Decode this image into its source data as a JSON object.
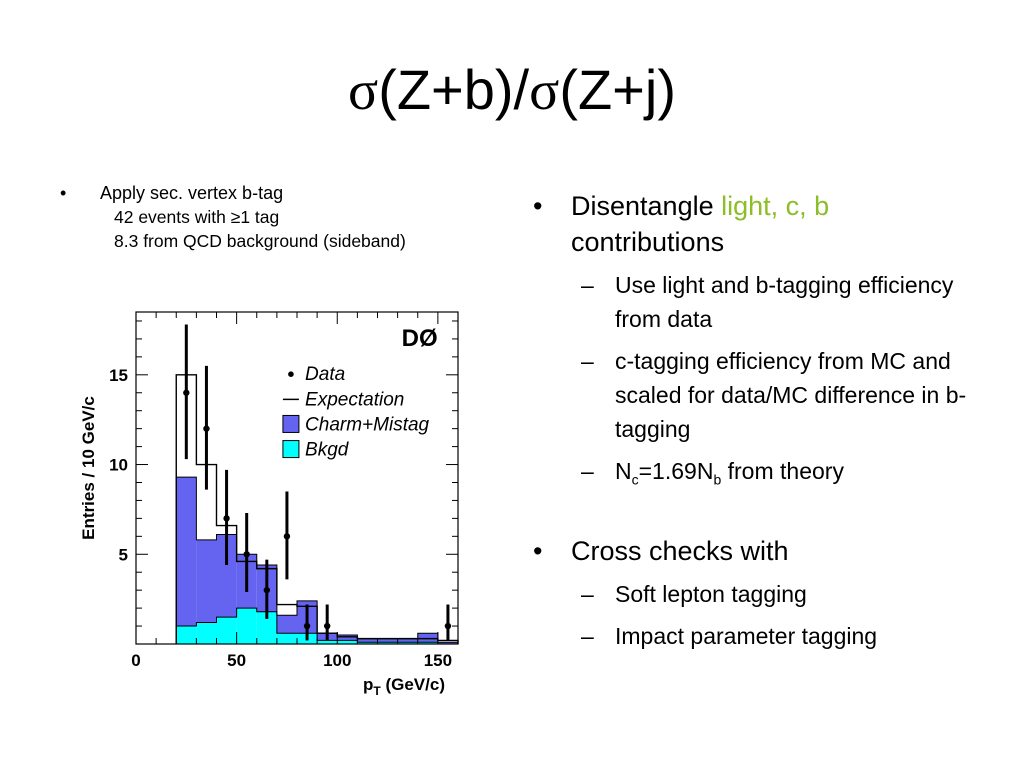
{
  "slide": {
    "title_sigma_1": "σ",
    "title_part_1": "(Z+b)/",
    "title_sigma_2": "σ",
    "title_part_2": "(Z+j)"
  },
  "left": {
    "bullet": "•",
    "heading": "Apply sec. vertex b-tag",
    "sub1": "42 events with ≥1 tag",
    "sub2": "8.3 from QCD background (sideband)"
  },
  "right": {
    "bullet": "•",
    "dash": "–",
    "b1_pre": "Disentangle ",
    "b1_green": "light, c, b",
    "b1_post": "contributions",
    "b1_s1": "Use light and b-tagging efficiency from data",
    "b1_s2": "c-tagging efficiency from MC and scaled for data/MC difference in b-tagging",
    "b1_s3_a": "N",
    "b1_s3_sub1": "c",
    "b1_s3_b": "=1.69N",
    "b1_s3_sub2": "b",
    "b1_s3_c": " from theory",
    "b2": "Cross checks with",
    "b2_s1": "Soft lepton tagging",
    "b2_s2": "Impact parameter tagging"
  },
  "colors": {
    "green_text": "#8cbe28",
    "charm": "#6464f0",
    "bkgd": "#00ffff",
    "data": "#000000"
  },
  "chart_data": {
    "type": "bar",
    "experiment_label": "DØ",
    "xlabel_main": "p",
    "xlabel_sub": "T",
    "xlabel_rest": " (GeV/c)",
    "ylabel": "Entries / 10 GeV/c",
    "xlim": [
      0,
      160
    ],
    "ylim": [
      0,
      18.5
    ],
    "x_ticks": [
      0,
      50,
      100,
      150
    ],
    "y_ticks": [
      5,
      10,
      15
    ],
    "legend": [
      {
        "name": "Data",
        "symbol": "marker"
      },
      {
        "name": "Expectation",
        "symbol": "line"
      },
      {
        "name": "Charm+Mistag",
        "symbol": "fill-charm"
      },
      {
        "name": "Bkgd",
        "symbol": "fill-bkgd"
      }
    ],
    "bin_edges": [
      20,
      30,
      40,
      50,
      60,
      70,
      80,
      90,
      100,
      110,
      120,
      130,
      140,
      150,
      160
    ],
    "expectation": [
      15.0,
      10.0,
      6.6,
      4.6,
      4.2,
      2.2,
      2.1,
      0.6,
      0.4,
      0.3,
      0.3,
      0.3,
      0.3,
      0.2
    ],
    "charm_mistag": [
      8.3,
      4.6,
      4.6,
      3.0,
      2.6,
      1.0,
      1.8,
      0.4,
      0.3,
      0.2,
      0.2,
      0.2,
      0.5,
      0.1
    ],
    "bkgd": [
      1.0,
      1.2,
      1.5,
      2.0,
      1.8,
      0.6,
      0.6,
      0.2,
      0.2,
      0.1,
      0.1,
      0.1,
      0.1,
      0.0
    ],
    "data": [
      {
        "x": 25,
        "y": 14,
        "err_lo": 3.7,
        "err_hi": 3.8
      },
      {
        "x": 35,
        "y": 12,
        "err_lo": 3.4,
        "err_hi": 3.5
      },
      {
        "x": 45,
        "y": 7,
        "err_lo": 2.6,
        "err_hi": 2.7
      },
      {
        "x": 55,
        "y": 5,
        "err_lo": 2.1,
        "err_hi": 2.3
      },
      {
        "x": 65,
        "y": 3,
        "err_lo": 1.6,
        "err_hi": 1.7
      },
      {
        "x": 75,
        "y": 6,
        "err_lo": 2.4,
        "err_hi": 2.5
      },
      {
        "x": 85,
        "y": 1,
        "err_lo": 0.8,
        "err_hi": 1.2
      },
      {
        "x": 95,
        "y": 1,
        "err_lo": 0.8,
        "err_hi": 1.2
      },
      {
        "x": 155,
        "y": 1,
        "err_lo": 0.8,
        "err_hi": 1.2
      }
    ]
  }
}
